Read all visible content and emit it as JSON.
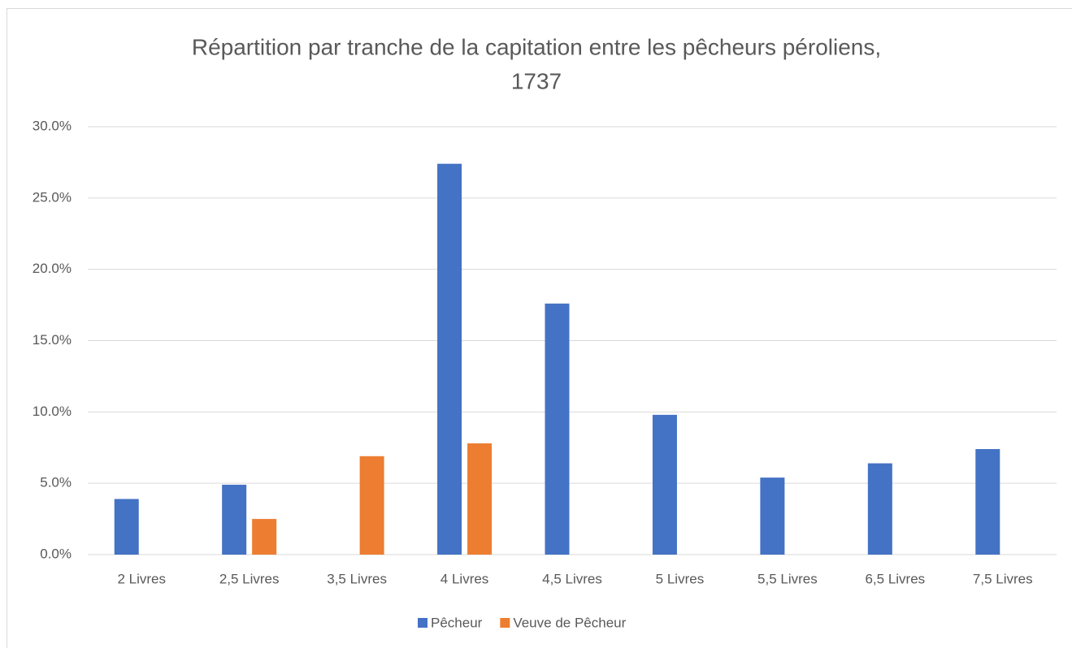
{
  "chart_data": {
    "type": "bar",
    "title": [
      "Répartition par tranche de la capitation entre les pêcheurs péroliens,",
      "1737"
    ],
    "categories": [
      "2 Livres",
      "2,5 Livres",
      "3,5 Livres",
      "4 Livres",
      "4,5 Livres",
      "5 Livres",
      "5,5 Livres",
      "6,5 Livres",
      "7,5 Livres"
    ],
    "series": [
      {
        "name": "Pêcheur",
        "color": "#4472c4",
        "values": [
          3.9,
          4.9,
          null,
          27.4,
          17.6,
          9.8,
          5.4,
          6.4,
          7.4
        ]
      },
      {
        "name": "Veuve de Pêcheur",
        "color": "#ed7d31",
        "values": [
          null,
          2.5,
          6.9,
          7.8,
          null,
          null,
          null,
          null,
          null
        ]
      }
    ],
    "ylim": [
      0,
      30
    ],
    "yticks": [
      {
        "value": 0,
        "label": "0.0%"
      },
      {
        "value": 5,
        "label": "5.0%"
      },
      {
        "value": 10,
        "label": "10.0%"
      },
      {
        "value": 15,
        "label": "15.0%"
      },
      {
        "value": 20,
        "label": "20.0%"
      },
      {
        "value": 25,
        "label": "25.0%"
      },
      {
        "value": 30,
        "label": "30.0%"
      }
    ],
    "grid": true,
    "legend": "bottom"
  }
}
